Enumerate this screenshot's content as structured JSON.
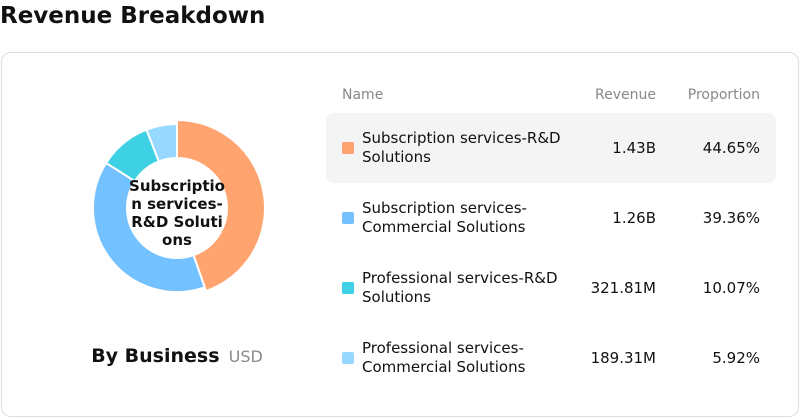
{
  "title": "Revenue Breakdown",
  "chart_data": {
    "type": "pie",
    "center_label": "Subscription services- R&D Solutions",
    "subtitle": "By Business",
    "unit": "USD",
    "columns": [
      "Name",
      "Revenue",
      "Proportion"
    ],
    "rows": [
      {
        "name": "Subscription services-R&D Solutions",
        "revenue": "1.43B",
        "proportion": "44.65%",
        "value": 44.65,
        "color": "#FFA46E"
      },
      {
        "name": "Subscription services-Commercial Solutions",
        "revenue": "1.26B",
        "proportion": "39.36%",
        "value": 39.36,
        "color": "#74C1FF"
      },
      {
        "name": "Professional services-R&D Solutions",
        "revenue": "321.81M",
        "proportion": "10.07%",
        "value": 10.07,
        "color": "#3ED1E3"
      },
      {
        "name": "Professional services-Commercial Solutions",
        "revenue": "189.31M",
        "proportion": "5.92%",
        "value": 5.92,
        "color": "#96D8FF"
      }
    ]
  }
}
